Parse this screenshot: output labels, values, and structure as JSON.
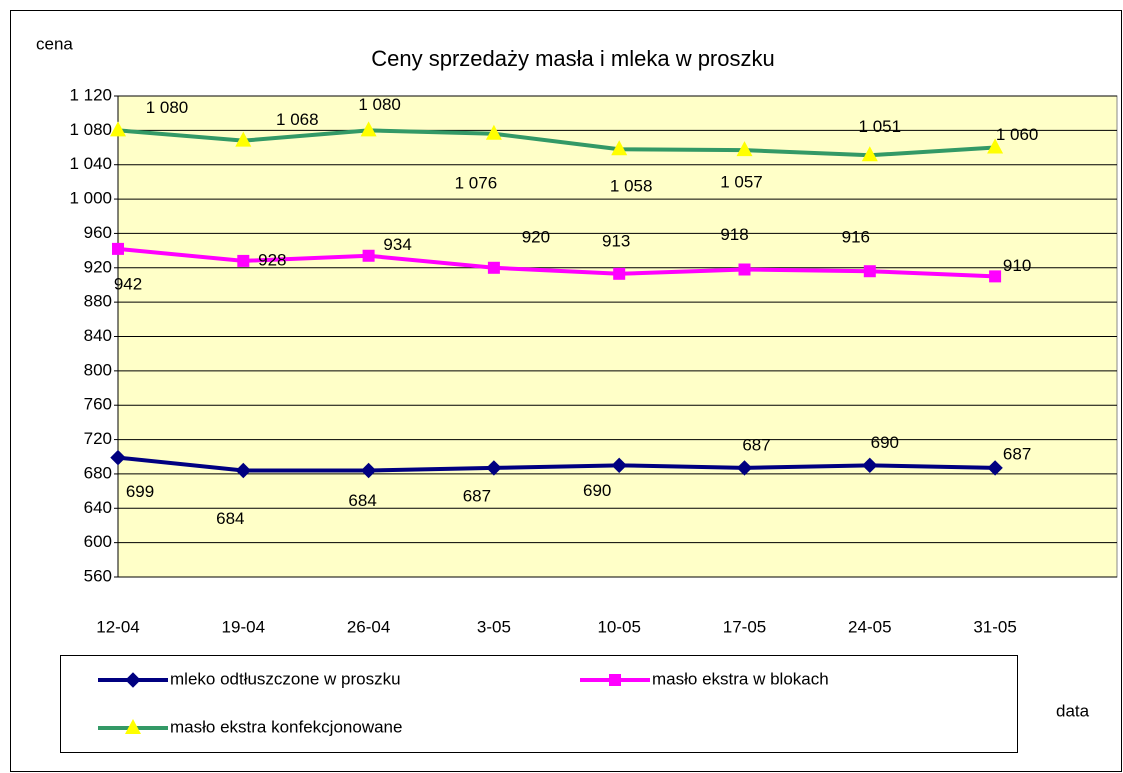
{
  "chart_data": {
    "type": "line",
    "title": "Ceny sprzedaży masła i mleka w proszku",
    "y_label": "cena",
    "x_label": "data",
    "categories": [
      "12-04",
      "19-04",
      "26-04",
      "3-05",
      "10-05",
      "17-05",
      "24-05",
      "31-05"
    ],
    "ylim": [
      560,
      1120
    ],
    "yticks": [
      560,
      600,
      640,
      680,
      720,
      760,
      800,
      840,
      880,
      920,
      960,
      {
        "value": 1000,
        "label": "1 000"
      },
      {
        "value": 1040,
        "label": "1 040"
      },
      {
        "value": 1080,
        "label": "1 080"
      },
      {
        "value": 1120,
        "label": "1 120"
      }
    ],
    "grid": true,
    "series": [
      {
        "name": "mleko odtłuszczone w proszku",
        "color": "#000080",
        "marker": "diamond",
        "marker_color": "#000080",
        "values": [
          699,
          684,
          684,
          687,
          690,
          687,
          690,
          687
        ]
      },
      {
        "name": "masło ekstra w blokach",
        "color": "#ff00ff",
        "marker": "square",
        "marker_color": "#ff00ff",
        "values": [
          942,
          928,
          934,
          920,
          913,
          918,
          916,
          910
        ]
      },
      {
        "name": "masło ekstra konfekcjonowane",
        "color": "#339966",
        "marker": "triangle",
        "marker_color": "#ffff00",
        "values": [
          1080,
          1068,
          1080,
          1076,
          1058,
          1057,
          1051,
          1060
        ],
        "value_labels": [
          "1 080",
          "1 068",
          "1 080",
          "1 076",
          "1 058",
          "1 057",
          "1 051",
          "1 060"
        ]
      }
    ]
  }
}
